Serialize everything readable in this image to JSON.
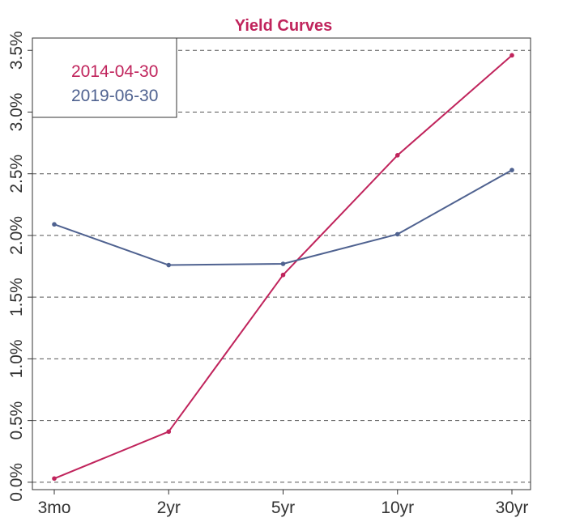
{
  "chart_data": {
    "type": "line",
    "title": "Yield Curves",
    "title_color": "#c0245c",
    "xlabel": "",
    "ylabel": "",
    "categories": [
      "3mo",
      "2yr",
      "5yr",
      "10yr",
      "30yr"
    ],
    "y_tick_labels": [
      "0.0%",
      "0.5%",
      "1.0%",
      "1.5%",
      "2.0%",
      "2.5%",
      "3.0%",
      "3.5%"
    ],
    "y_ticks": [
      0.0,
      0.5,
      1.0,
      1.5,
      2.0,
      2.5,
      3.0,
      3.5
    ],
    "ylim": [
      -0.06,
      3.6
    ],
    "grid": "horizontal-dashed",
    "legend_position": "top-left",
    "series": [
      {
        "name": "2014-04-30",
        "color": "#c0245c",
        "values": [
          0.03,
          0.41,
          1.68,
          2.65,
          3.46
        ]
      },
      {
        "name": "2019-06-30",
        "color": "#4f6290",
        "values": [
          2.09,
          1.76,
          1.77,
          2.01,
          2.53
        ]
      }
    ]
  }
}
